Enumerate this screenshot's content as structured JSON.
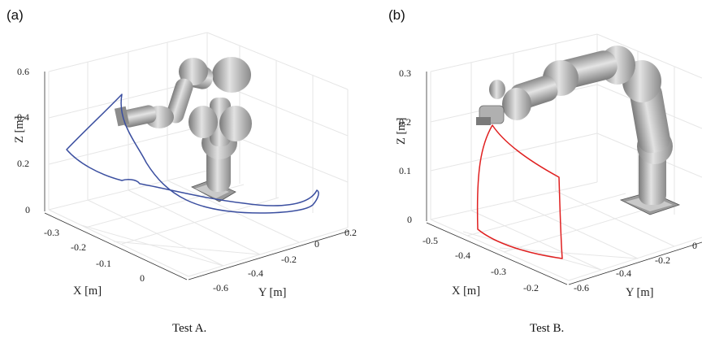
{
  "figure": {
    "panels": [
      {
        "label": "(a)",
        "caption": "Test A.",
        "z_axis_label": "Z [m]",
        "x_axis_label": "X [m]",
        "y_axis_label": "Y [m]",
        "z_ticks": [
          "0",
          "0.2",
          "0.4",
          "0.6"
        ],
        "x_ticks": [
          "-0.3",
          "-0.2",
          "-0.1",
          "0"
        ],
        "y_ticks": [
          "-0.6",
          "-0.4",
          "-0.2",
          "0",
          "0.2"
        ],
        "trajectory_color": "#3b4fa0"
      },
      {
        "label": "(b)",
        "caption": "Test B.",
        "z_axis_label": "Z [m]",
        "x_axis_label": "X [m]",
        "y_axis_label": "Y [m]",
        "z_ticks": [
          "0",
          "0.1",
          "0.2",
          "0.3"
        ],
        "x_ticks": [
          "-0.5",
          "-0.4",
          "-0.3",
          "-0.2"
        ],
        "y_ticks": [
          "-0.6",
          "-0.4",
          "-0.2",
          "0"
        ],
        "trajectory_color": "#e02020"
      }
    ],
    "colors": {
      "robot_light": "#d9d9d9",
      "robot_mid": "#a8a8a8",
      "robot_dark": "#6f6f6f",
      "grid": "#e6e6e6"
    }
  }
}
